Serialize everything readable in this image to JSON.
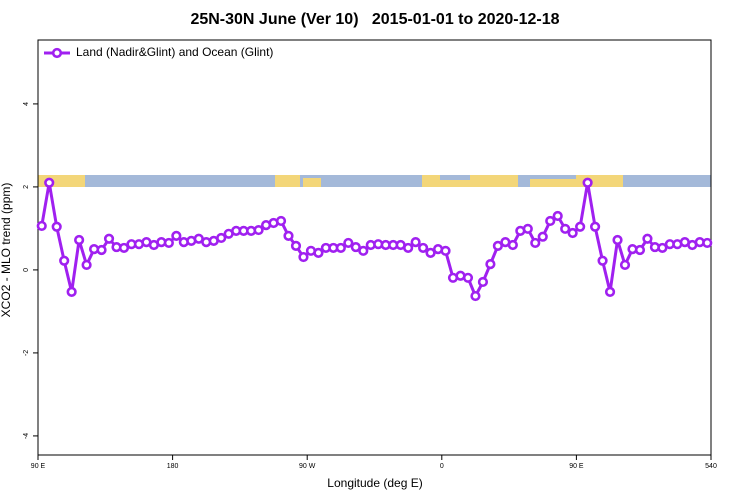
{
  "chart_data": {
    "type": "line",
    "title": "25N-30N June (Ver 10)   2015-01-01 to 2020-12-18",
    "xlabel": "Longitude (deg E)",
    "ylabel": "XCO2 - MLO trend (ppm)",
    "xlim": [
      90,
      540
    ],
    "xticks": [
      {
        "value": 90,
        "label": "90 E"
      },
      180,
      {
        "value": 270,
        "label": "90 W"
      },
      {
        "value": 360,
        "label": "0"
      },
      {
        "value": 450,
        "label": "90 E"
      },
      540
    ],
    "ylim": [
      -4.46,
      5.54
    ],
    "yticks": [
      -4,
      -2,
      0,
      2,
      4
    ],
    "legend": "top-left",
    "x": [
      92.5,
      97.5,
      102.5,
      107.5,
      112.5,
      117.5,
      122.5,
      127.5,
      132.5,
      137.5,
      142.5,
      147.5,
      152.5,
      157.5,
      162.5,
      167.5,
      172.5,
      177.5,
      182.5,
      187.5,
      192.5,
      197.5,
      202.5,
      207.5,
      212.5,
      217.5,
      222.5,
      227.5,
      232.5,
      237.5,
      242.5,
      247.5,
      252.5,
      257.5,
      262.5,
      267.5,
      272.5,
      277.5,
      282.5,
      287.5,
      292.5,
      297.5,
      302.5,
      307.5,
      312.5,
      317.5,
      322.5,
      327.5,
      332.5,
      337.5,
      342.5,
      347.5,
      352.5,
      357.5,
      362.5,
      367.5,
      372.5,
      377.5,
      382.5,
      387.5,
      392.5,
      397.5,
      402.5,
      407.5,
      412.5,
      417.5,
      422.5,
      427.5,
      432.5,
      437.5,
      442.5,
      447.5,
      452.5,
      457.5,
      462.5,
      467.5,
      472.5,
      477.5,
      482.5,
      487.5,
      492.5,
      497.5,
      502.5,
      507.5,
      512.5,
      517.5,
      522.5,
      527.5,
      532.5,
      537.5
    ],
    "series": [
      {
        "name": "Land (Nadir&Glint) and Ocean (Glint)",
        "color": "#a020f0",
        "values": [
          1.06,
          2.1,
          1.04,
          0.22,
          -0.53,
          0.72,
          0.12,
          0.5,
          0.48,
          0.75,
          0.55,
          0.53,
          0.62,
          0.62,
          0.67,
          0.6,
          0.67,
          0.65,
          0.82,
          0.67,
          0.7,
          0.75,
          0.67,
          0.7,
          0.77,
          0.87,
          0.94,
          0.94,
          0.94,
          0.96,
          1.08,
          1.13,
          1.18,
          0.82,
          0.58,
          0.31,
          0.46,
          0.41,
          0.53,
          0.53,
          0.53,
          0.65,
          0.55,
          0.46,
          0.6,
          0.62,
          0.6,
          0.6,
          0.6,
          0.53,
          0.67,
          0.53,
          0.41,
          0.5,
          0.46,
          -0.19,
          -0.14,
          -0.19,
          -0.63,
          -0.29,
          0.14,
          0.58,
          0.67,
          0.6,
          0.94,
          0.99,
          0.65,
          0.8,
          1.18,
          1.3,
          0.99,
          0.89,
          1.04,
          2.1,
          1.04,
          0.22,
          -0.53,
          0.72,
          0.12,
          0.5,
          0.48,
          0.75,
          0.55,
          0.53,
          0.62,
          0.62,
          0.67,
          0.6,
          0.67,
          0.65
        ]
      }
    ]
  }
}
